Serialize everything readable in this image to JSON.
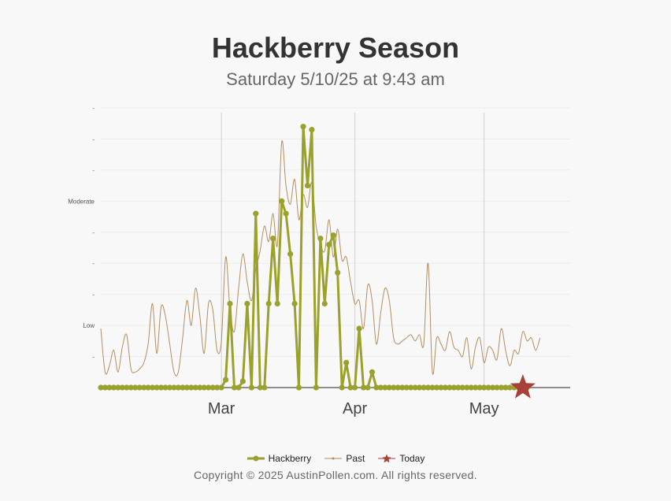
{
  "chart_data": {
    "type": "line",
    "title": "Hackberry Season",
    "subtitle": "Saturday 5/10/25 at 9:43 am",
    "x_range": [
      "2025-02-01",
      "2025-05-21"
    ],
    "x_tick_labels": [
      {
        "label": "Mar",
        "date": "2025-03-01"
      },
      {
        "label": "Apr",
        "date": "2025-04-01"
      },
      {
        "label": "May",
        "date": "2025-05-01"
      }
    ],
    "y_range": [
      0,
      9
    ],
    "y_tick_labels": [
      {
        "label": "-",
        "value": 1
      },
      {
        "label": "Low",
        "value": 2
      },
      {
        "label": "-",
        "value": 3
      },
      {
        "label": "-",
        "value": 4
      },
      {
        "label": "-",
        "value": 5
      },
      {
        "label": "Moderate",
        "value": 6
      },
      {
        "label": "-",
        "value": 7
      },
      {
        "label": "-",
        "value": 8
      },
      {
        "label": "-",
        "value": 9
      }
    ],
    "grid": true,
    "legend_position": "bottom",
    "series": [
      {
        "name": "Hackberry",
        "color": "#9aa12c",
        "start_date": "2025-02-01",
        "values": [
          0,
          0,
          0,
          0,
          0,
          0,
          0,
          0,
          0,
          0,
          0,
          0,
          0,
          0,
          0,
          0,
          0,
          0,
          0,
          0,
          0,
          0,
          0,
          0,
          0,
          0,
          0,
          0,
          0,
          0.25,
          2.7,
          0,
          0,
          0.2,
          2.7,
          0,
          5.6,
          0,
          0,
          2.7,
          4.8,
          2.7,
          6,
          5.6,
          4.3,
          2.7,
          0,
          8.4,
          6.5,
          8.3,
          0,
          4.8,
          2.7,
          4.6,
          4.9,
          3.7,
          0,
          0.8,
          0,
          0,
          1.9,
          0,
          0,
          0.5,
          0,
          0,
          0,
          0,
          0,
          0,
          0,
          0,
          0,
          0,
          0,
          0,
          0,
          0,
          0,
          0,
          0,
          0,
          0,
          0,
          0,
          0,
          0,
          0,
          0,
          0,
          0,
          0,
          0,
          0,
          0,
          0,
          0,
          0,
          0,
          0
        ]
      },
      {
        "name": "Past",
        "color": "#b48d5e",
        "start_date": "2025-02-01",
        "values": [
          1.9,
          0.5,
          0.7,
          1.2,
          0.5,
          1.3,
          1.7,
          0.6,
          0.5,
          0.6,
          0.8,
          1.4,
          2.7,
          1.1,
          2.6,
          2.3,
          1.4,
          0.5,
          0.5,
          1.6,
          2.8,
          2.0,
          3.2,
          2.3,
          1.1,
          2.7,
          2.5,
          1.2,
          1.5,
          4.2,
          2.5,
          1.8,
          3.2,
          4.3,
          3.4,
          2.8,
          3.8,
          4.4,
          5.2,
          4.7,
          5.6,
          4.6,
          7.9,
          6.5,
          5.9,
          6.7,
          5.4,
          6.2,
          5.8,
          6.6,
          5.2,
          4.6,
          4.4,
          5.4,
          4.2,
          5.1,
          4.1,
          4.2,
          3.4,
          2.7,
          2.8,
          1.9,
          3.3,
          2.8,
          1.4,
          2.4,
          3.2,
          2.8,
          1.6,
          1.4,
          1.5,
          1.6,
          1.7,
          1.5,
          1.7,
          1.4,
          4.0,
          0.5,
          1.6,
          1.4,
          1.2,
          1.8,
          1.3,
          1.2,
          1.0,
          1.6,
          0.6,
          1.3,
          1.6,
          0.8,
          1.3,
          1.2,
          0.9,
          1.9,
          1.2,
          0.7,
          1.2,
          1.1,
          1.8,
          1.5,
          1.6,
          1.2,
          1.6
        ]
      },
      {
        "name": "Today",
        "color": "#a8413a",
        "date": "2025-05-10",
        "value": 0
      }
    ]
  },
  "legend": {
    "hackberry_label": "Hackberry",
    "past_label": "Past",
    "today_label": "Today"
  },
  "footer": {
    "copyright": "Copyright © 2025 AustinPollen.com.  All rights reserved."
  }
}
